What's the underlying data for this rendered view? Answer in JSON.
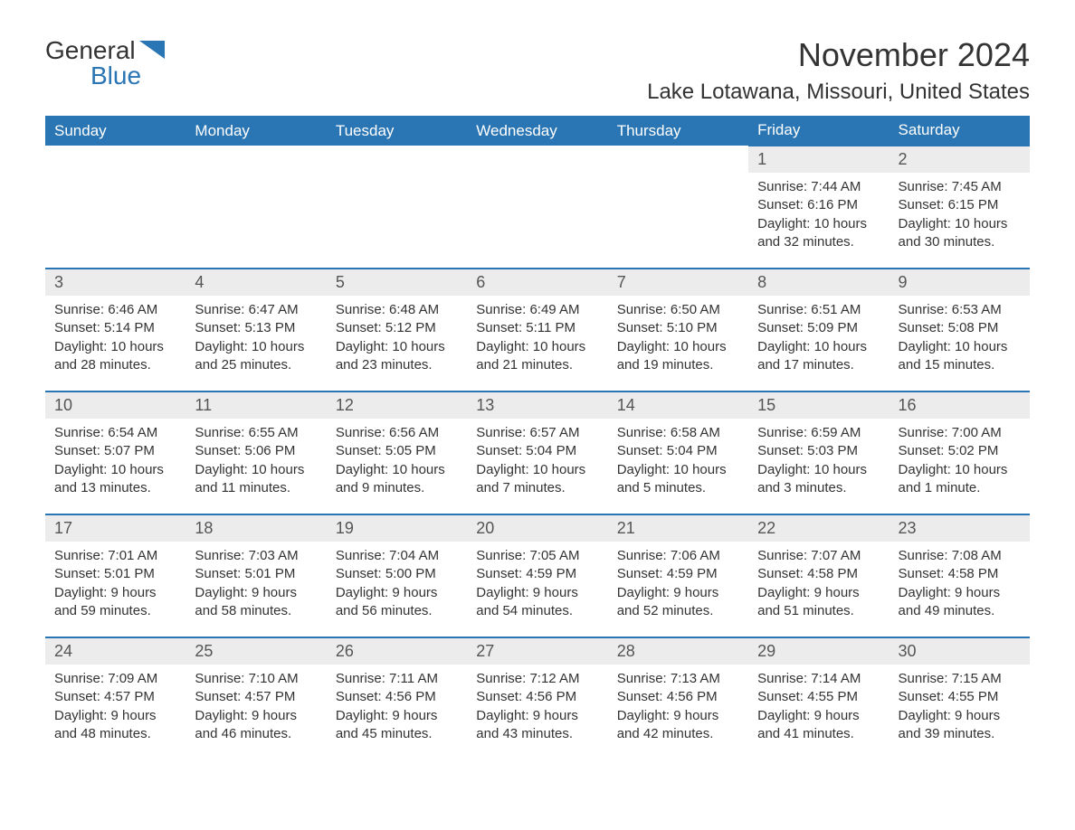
{
  "logo": {
    "text1": "General",
    "text2": "Blue",
    "icon_color": "#2a75b3"
  },
  "title": "November 2024",
  "location": "Lake Lotawana, Missouri, United States",
  "colors": {
    "header_bg": "#2a75b3",
    "header_text": "#ffffff",
    "daynum_bg": "#ececec",
    "daynum_border": "#2a75b3",
    "text": "#333333",
    "body_bg": "#ffffff"
  },
  "day_headers": [
    "Sunday",
    "Monday",
    "Tuesday",
    "Wednesday",
    "Thursday",
    "Friday",
    "Saturday"
  ],
  "weeks": [
    [
      {
        "empty": true
      },
      {
        "empty": true
      },
      {
        "empty": true
      },
      {
        "empty": true
      },
      {
        "empty": true
      },
      {
        "n": "1",
        "sunrise": "7:44 AM",
        "sunset": "6:16 PM",
        "dl1": "Daylight: 10 hours",
        "dl2": "and 32 minutes."
      },
      {
        "n": "2",
        "sunrise": "7:45 AM",
        "sunset": "6:15 PM",
        "dl1": "Daylight: 10 hours",
        "dl2": "and 30 minutes."
      }
    ],
    [
      {
        "n": "3",
        "sunrise": "6:46 AM",
        "sunset": "5:14 PM",
        "dl1": "Daylight: 10 hours",
        "dl2": "and 28 minutes."
      },
      {
        "n": "4",
        "sunrise": "6:47 AM",
        "sunset": "5:13 PM",
        "dl1": "Daylight: 10 hours",
        "dl2": "and 25 minutes."
      },
      {
        "n": "5",
        "sunrise": "6:48 AM",
        "sunset": "5:12 PM",
        "dl1": "Daylight: 10 hours",
        "dl2": "and 23 minutes."
      },
      {
        "n": "6",
        "sunrise": "6:49 AM",
        "sunset": "5:11 PM",
        "dl1": "Daylight: 10 hours",
        "dl2": "and 21 minutes."
      },
      {
        "n": "7",
        "sunrise": "6:50 AM",
        "sunset": "5:10 PM",
        "dl1": "Daylight: 10 hours",
        "dl2": "and 19 minutes."
      },
      {
        "n": "8",
        "sunrise": "6:51 AM",
        "sunset": "5:09 PM",
        "dl1": "Daylight: 10 hours",
        "dl2": "and 17 minutes."
      },
      {
        "n": "9",
        "sunrise": "6:53 AM",
        "sunset": "5:08 PM",
        "dl1": "Daylight: 10 hours",
        "dl2": "and 15 minutes."
      }
    ],
    [
      {
        "n": "10",
        "sunrise": "6:54 AM",
        "sunset": "5:07 PM",
        "dl1": "Daylight: 10 hours",
        "dl2": "and 13 minutes."
      },
      {
        "n": "11",
        "sunrise": "6:55 AM",
        "sunset": "5:06 PM",
        "dl1": "Daylight: 10 hours",
        "dl2": "and 11 minutes."
      },
      {
        "n": "12",
        "sunrise": "6:56 AM",
        "sunset": "5:05 PM",
        "dl1": "Daylight: 10 hours",
        "dl2": "and 9 minutes."
      },
      {
        "n": "13",
        "sunrise": "6:57 AM",
        "sunset": "5:04 PM",
        "dl1": "Daylight: 10 hours",
        "dl2": "and 7 minutes."
      },
      {
        "n": "14",
        "sunrise": "6:58 AM",
        "sunset": "5:04 PM",
        "dl1": "Daylight: 10 hours",
        "dl2": "and 5 minutes."
      },
      {
        "n": "15",
        "sunrise": "6:59 AM",
        "sunset": "5:03 PM",
        "dl1": "Daylight: 10 hours",
        "dl2": "and 3 minutes."
      },
      {
        "n": "16",
        "sunrise": "7:00 AM",
        "sunset": "5:02 PM",
        "dl1": "Daylight: 10 hours",
        "dl2": "and 1 minute."
      }
    ],
    [
      {
        "n": "17",
        "sunrise": "7:01 AM",
        "sunset": "5:01 PM",
        "dl1": "Daylight: 9 hours",
        "dl2": "and 59 minutes."
      },
      {
        "n": "18",
        "sunrise": "7:03 AM",
        "sunset": "5:01 PM",
        "dl1": "Daylight: 9 hours",
        "dl2": "and 58 minutes."
      },
      {
        "n": "19",
        "sunrise": "7:04 AM",
        "sunset": "5:00 PM",
        "dl1": "Daylight: 9 hours",
        "dl2": "and 56 minutes."
      },
      {
        "n": "20",
        "sunrise": "7:05 AM",
        "sunset": "4:59 PM",
        "dl1": "Daylight: 9 hours",
        "dl2": "and 54 minutes."
      },
      {
        "n": "21",
        "sunrise": "7:06 AM",
        "sunset": "4:59 PM",
        "dl1": "Daylight: 9 hours",
        "dl2": "and 52 minutes."
      },
      {
        "n": "22",
        "sunrise": "7:07 AM",
        "sunset": "4:58 PM",
        "dl1": "Daylight: 9 hours",
        "dl2": "and 51 minutes."
      },
      {
        "n": "23",
        "sunrise": "7:08 AM",
        "sunset": "4:58 PM",
        "dl1": "Daylight: 9 hours",
        "dl2": "and 49 minutes."
      }
    ],
    [
      {
        "n": "24",
        "sunrise": "7:09 AM",
        "sunset": "4:57 PM",
        "dl1": "Daylight: 9 hours",
        "dl2": "and 48 minutes."
      },
      {
        "n": "25",
        "sunrise": "7:10 AM",
        "sunset": "4:57 PM",
        "dl1": "Daylight: 9 hours",
        "dl2": "and 46 minutes."
      },
      {
        "n": "26",
        "sunrise": "7:11 AM",
        "sunset": "4:56 PM",
        "dl1": "Daylight: 9 hours",
        "dl2": "and 45 minutes."
      },
      {
        "n": "27",
        "sunrise": "7:12 AM",
        "sunset": "4:56 PM",
        "dl1": "Daylight: 9 hours",
        "dl2": "and 43 minutes."
      },
      {
        "n": "28",
        "sunrise": "7:13 AM",
        "sunset": "4:56 PM",
        "dl1": "Daylight: 9 hours",
        "dl2": "and 42 minutes."
      },
      {
        "n": "29",
        "sunrise": "7:14 AM",
        "sunset": "4:55 PM",
        "dl1": "Daylight: 9 hours",
        "dl2": "and 41 minutes."
      },
      {
        "n": "30",
        "sunrise": "7:15 AM",
        "sunset": "4:55 PM",
        "dl1": "Daylight: 9 hours",
        "dl2": "and 39 minutes."
      }
    ]
  ],
  "labels": {
    "sunrise_prefix": "Sunrise: ",
    "sunset_prefix": "Sunset: "
  }
}
